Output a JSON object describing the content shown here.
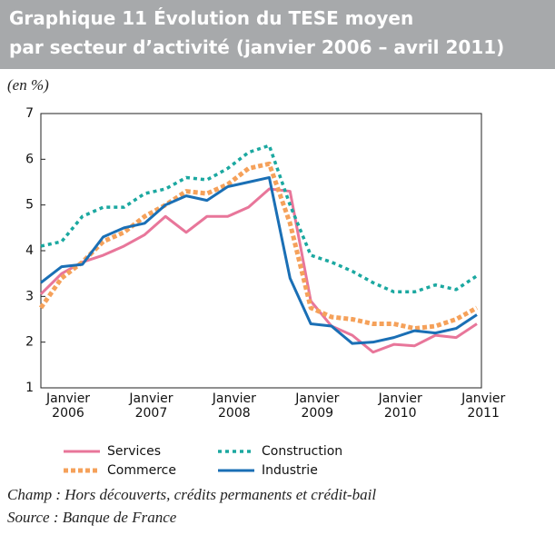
{
  "chart_data": {
    "type": "line",
    "title_lines": [
      "Graphique 11  Évolution du TESE moyen",
      "par secteur d’activité (janvier 2006 – avril 2011)"
    ],
    "unit_label": "(en %)",
    "categories": [
      "Janvier 2006",
      null,
      null,
      null,
      "Janvier 2007",
      null,
      null,
      null,
      "Janvier 2008",
      null,
      null,
      null,
      "Janvier 2009",
      null,
      null,
      null,
      "Janvier 2010",
      null,
      null,
      null,
      "Janvier 2011",
      null
    ],
    "series": [
      {
        "name": "Services",
        "color": "#e8769a",
        "style": "solid",
        "values": [
          3.05,
          3.5,
          3.75,
          3.9,
          4.1,
          4.35,
          4.75,
          4.4,
          4.75,
          4.75,
          4.95,
          5.35,
          5.3,
          2.9,
          2.35,
          2.15,
          1.78,
          1.95,
          1.92,
          2.15,
          2.1,
          2.4
        ]
      },
      {
        "name": "Commerce",
        "color": "#f5a15a",
        "style": "dashed",
        "values": [
          2.75,
          3.4,
          3.75,
          4.2,
          4.4,
          4.75,
          5.0,
          5.3,
          5.25,
          5.45,
          5.8,
          5.9,
          4.6,
          2.75,
          2.55,
          2.5,
          2.4,
          2.4,
          2.3,
          2.35,
          2.5,
          2.75
        ]
      },
      {
        "name": "Construction",
        "color": "#1ba8a0",
        "style": "dotted",
        "values": [
          4.1,
          4.2,
          4.75,
          4.95,
          4.95,
          5.25,
          5.35,
          5.6,
          5.55,
          5.8,
          6.15,
          6.3,
          5.0,
          3.9,
          3.75,
          3.55,
          3.3,
          3.1,
          3.1,
          3.25,
          3.15,
          3.45
        ]
      },
      {
        "name": "Industrie",
        "color": "#1a6fb5",
        "style": "solid",
        "values": [
          3.3,
          3.65,
          3.7,
          4.3,
          4.5,
          4.6,
          5.0,
          5.2,
          5.1,
          5.4,
          5.5,
          5.6,
          3.4,
          2.4,
          2.35,
          1.97,
          2.0,
          2.1,
          2.25,
          2.2,
          2.3,
          2.6
        ]
      }
    ],
    "ylim": [
      1,
      7
    ],
    "yticks": [
      1,
      2,
      3,
      4,
      5,
      6,
      7
    ],
    "grid": false,
    "notes": [
      "Champ : Hors découverts, crédits permanents et crédit-bail",
      "Source : Banque de France"
    ]
  }
}
